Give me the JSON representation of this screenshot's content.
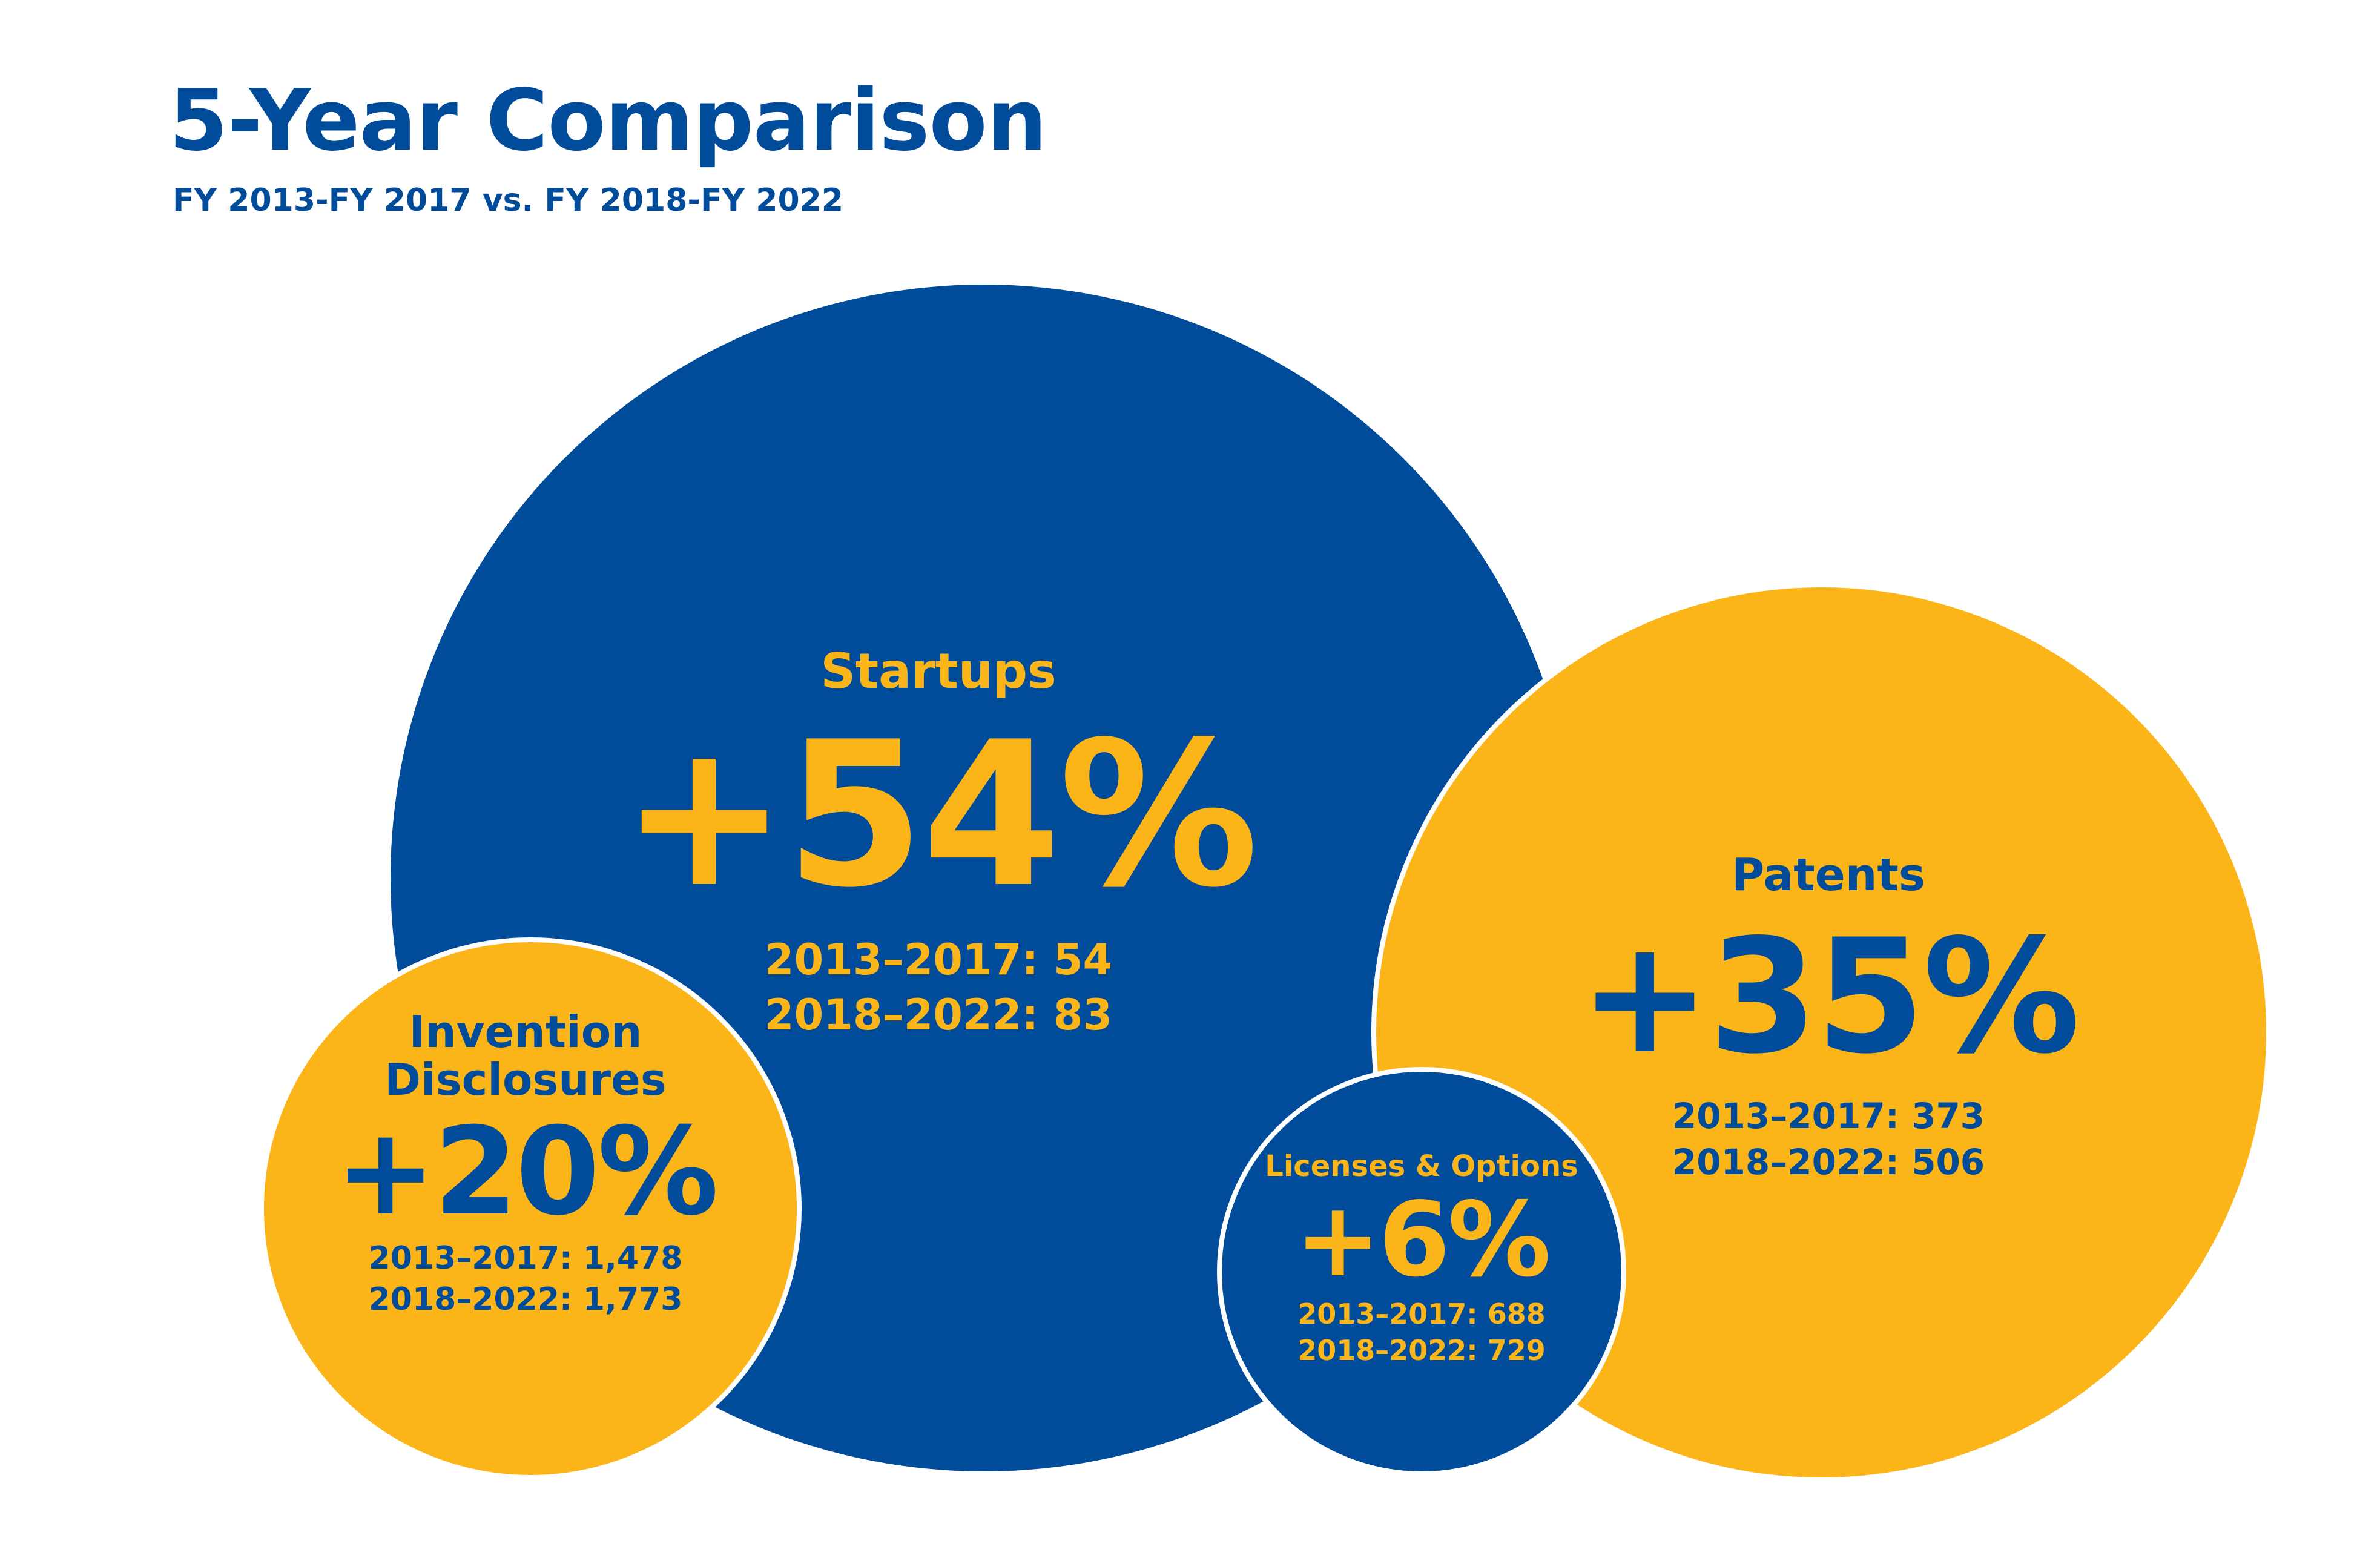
{
  "header": {
    "title": "5-Year Comparison",
    "subtitle": "FY 2013-FY 2017 vs. FY 2018-FY 2022"
  },
  "metrics": {
    "startups": {
      "label": "Startups",
      "change": "+54%",
      "period1": "2013–2017: 54",
      "period2": "2018–2022: 83"
    },
    "patents": {
      "label": "Patents",
      "change": "+35%",
      "period1": "2013–2017: 373",
      "period2": "2018–2022: 506"
    },
    "invention_disclosures": {
      "label_line1": "Invention",
      "label_line2": "Disclosures",
      "change": "+20%",
      "period1": "2013–2017: 1,478",
      "period2": "2018–2022: 1,773"
    },
    "licenses_options": {
      "label": "Licenses & Options",
      "change": "+6%",
      "period1": "2013–2017: 688",
      "period2": "2018–2022: 729"
    }
  },
  "colors": {
    "blue": "#004c9a",
    "gold": "#fbb519"
  }
}
